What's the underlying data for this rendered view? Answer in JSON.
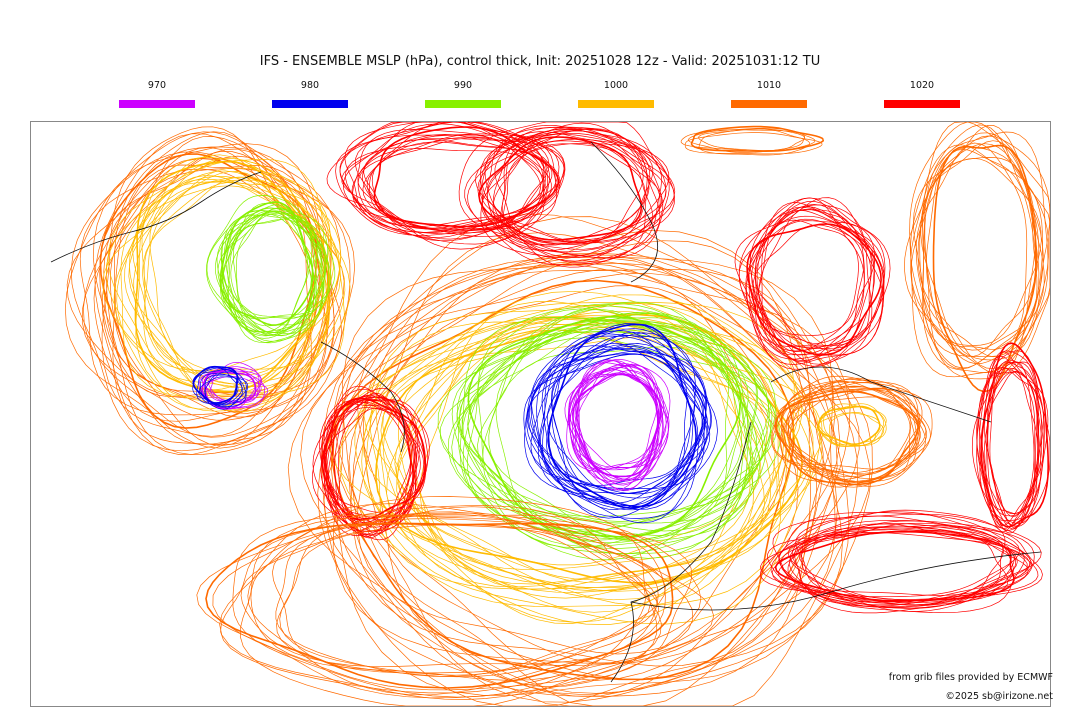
{
  "title": "IFS - ENSEMBLE MSLP (hPa), control thick, Init: 20251028 12z - Valid: 20251031:12 TU",
  "legend": [
    {
      "label": "970",
      "color": "#cc00ff"
    },
    {
      "label": "980",
      "color": "#0000ee"
    },
    {
      "label": "990",
      "color": "#88f000"
    },
    {
      "label": "1000",
      "color": "#ffbb00"
    },
    {
      "label": "1010",
      "color": "#ff6a00"
    },
    {
      "label": "1020",
      "color": "#ff0000"
    }
  ],
  "credits": {
    "source": "from grib files provided by ECMWF",
    "copyright": "©2025 sb@irizone.net"
  }
}
